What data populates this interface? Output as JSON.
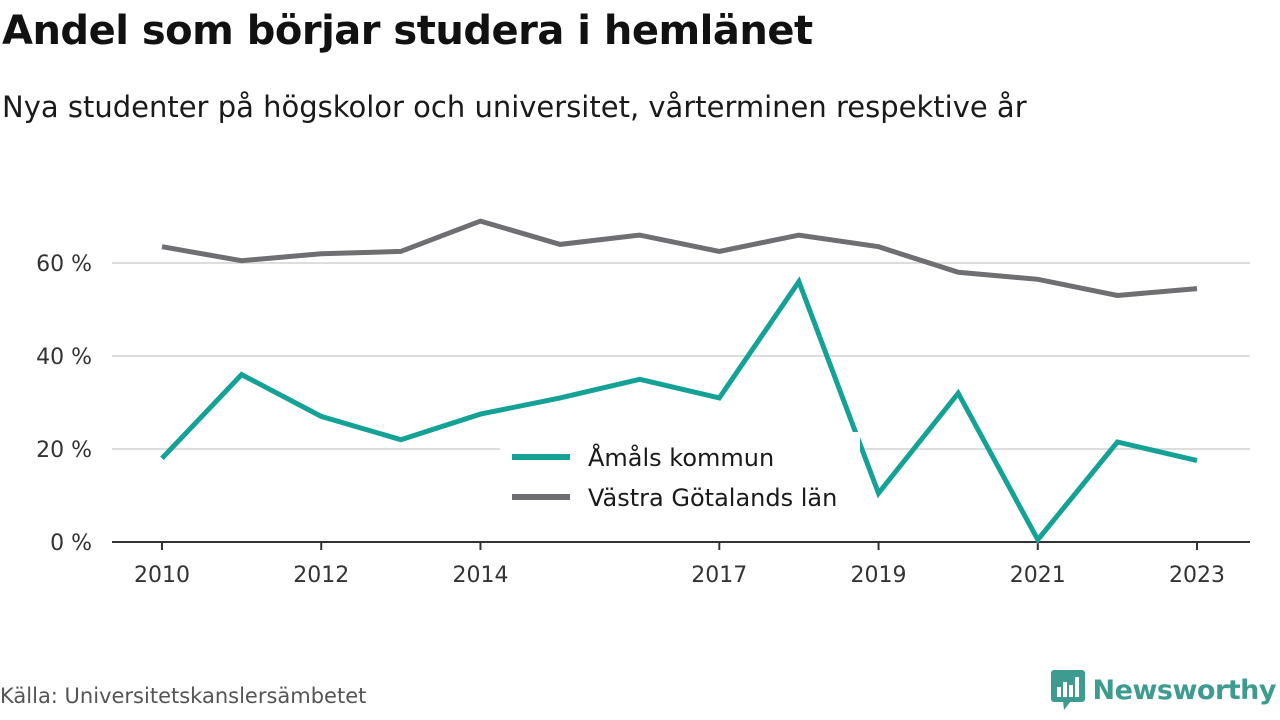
{
  "title": "Andel som börjar studera i hemlänet",
  "subtitle": "Nya studenter på högskolor och universitet, vårterminen respektive år",
  "source": "Källa: Universitetskanslersämbetet",
  "brand": {
    "name": "Newsworthy",
    "icon": "bar-chart-speech-bubble-icon",
    "color": "#3d9c8f"
  },
  "colors": {
    "amal": "#14a196",
    "vastra": "#6e6e73",
    "grid": "#dddddd",
    "axis": "#333333"
  },
  "chart_data": {
    "type": "line",
    "x": [
      2010,
      2011,
      2012,
      2013,
      2014,
      2015,
      2016,
      2017,
      2018,
      2019,
      2020,
      2021,
      2022,
      2023
    ],
    "xticks": [
      "2010",
      "2012",
      "2014",
      "2017",
      "2019",
      "2021",
      "2023"
    ],
    "xlim": [
      2010,
      2023
    ],
    "yticks": [
      "0 %",
      "20 %",
      "40 %",
      "60 %"
    ],
    "ylim": [
      0,
      70
    ],
    "grid": true,
    "legend_position": "center",
    "series": [
      {
        "name": "Åmåls kommun",
        "color": "#14a196",
        "values": [
          18,
          36,
          27,
          22,
          27.5,
          31,
          35,
          31,
          56,
          10.5,
          32,
          0.5,
          21.5,
          17.5
        ]
      },
      {
        "name": "Västra Götalands län",
        "color": "#6e6e73",
        "values": [
          63.5,
          60.5,
          62,
          62.5,
          69,
          64,
          66,
          62.5,
          66,
          63.5,
          58,
          56.5,
          53,
          54.5
        ]
      }
    ]
  }
}
